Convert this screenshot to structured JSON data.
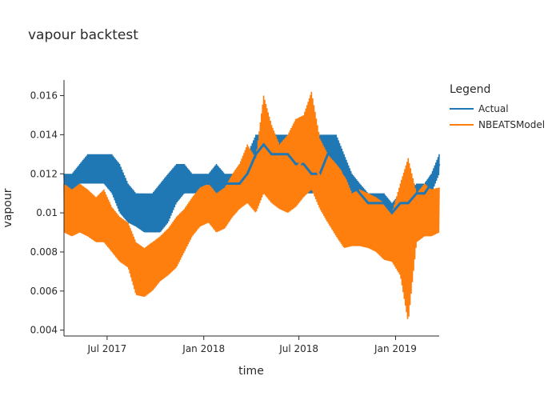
{
  "chart_data": {
    "type": "line",
    "title": "vapour backtest",
    "xlabel": "time",
    "ylabel": "vapour",
    "x_range": [
      "2017-04-10",
      "2019-03-25"
    ],
    "ylim": [
      0.0037,
      0.0168
    ],
    "x_ticks": [
      {
        "date": "2017-07-01",
        "label": "Jul 2017"
      },
      {
        "date": "2018-01-01",
        "label": "Jan 2018"
      },
      {
        "date": "2018-07-01",
        "label": "Jul 2018"
      },
      {
        "date": "2019-01-01",
        "label": "Jan 2019"
      }
    ],
    "y_ticks": [
      {
        "value": 0.004,
        "label": "0.004"
      },
      {
        "value": 0.006,
        "label": "0.006"
      },
      {
        "value": 0.008,
        "label": "0.008"
      },
      {
        "value": 0.01,
        "label": "0.01"
      },
      {
        "value": 0.012,
        "label": "0.012"
      },
      {
        "value": 0.014,
        "label": "0.014"
      },
      {
        "value": 0.016,
        "label": "0.016"
      }
    ],
    "legend_title": "Legend",
    "legend_position": "right",
    "series": [
      {
        "name": "Actual",
        "color": "#1f77b4",
        "x": [
          "2017-04-10",
          "2017-04-25",
          "2017-05-10",
          "2017-05-25",
          "2017-06-10",
          "2017-06-25",
          "2017-07-10",
          "2017-07-25",
          "2017-08-10",
          "2017-08-25",
          "2017-09-10",
          "2017-09-25",
          "2017-10-10",
          "2017-10-25",
          "2017-11-10",
          "2017-11-25",
          "2017-12-10",
          "2017-12-25",
          "2018-01-10",
          "2018-01-25",
          "2018-02-10",
          "2018-02-25",
          "2018-03-10",
          "2018-03-25",
          "2018-04-10",
          "2018-04-25",
          "2018-05-10",
          "2018-05-25",
          "2018-06-10",
          "2018-06-25",
          "2018-07-10",
          "2018-07-25",
          "2018-08-10",
          "2018-08-25",
          "2018-09-10",
          "2018-09-25",
          "2018-10-10",
          "2018-10-25",
          "2018-11-10",
          "2018-11-25",
          "2018-12-10",
          "2018-12-25",
          "2019-01-10",
          "2019-01-25",
          "2019-02-10",
          "2019-02-25",
          "2019-03-10",
          "2019-03-25"
        ],
        "y": [
          0.0115,
          0.0115,
          0.012,
          0.0125,
          0.0125,
          0.012,
          0.0115,
          0.0115,
          0.0105,
          0.01,
          0.01,
          0.01,
          0.0105,
          0.011,
          0.0115,
          0.0115,
          0.0115,
          0.0115,
          0.0115,
          0.0115,
          0.0115,
          0.0115,
          0.0115,
          0.012,
          0.013,
          0.0135,
          0.013,
          0.013,
          0.013,
          0.0125,
          0.0125,
          0.012,
          0.012,
          0.013,
          0.013,
          0.012,
          0.0115,
          0.011,
          0.0105,
          0.0105,
          0.0105,
          0.01,
          0.0105,
          0.0105,
          0.011,
          0.011,
          0.0115,
          0.0125
        ],
        "low": [
          0.011,
          0.011,
          0.0115,
          0.0115,
          0.0115,
          0.0115,
          0.011,
          0.01,
          0.0095,
          0.0093,
          0.009,
          0.009,
          0.009,
          0.0095,
          0.0105,
          0.011,
          0.011,
          0.011,
          0.011,
          0.011,
          0.011,
          0.011,
          0.0105,
          0.0105,
          0.0115,
          0.012,
          0.0115,
          0.012,
          0.012,
          0.011,
          0.011,
          0.011,
          0.011,
          0.0115,
          0.0115,
          0.011,
          0.0105,
          0.0103,
          0.01,
          0.0097,
          0.0095,
          0.0095,
          0.0095,
          0.0097,
          0.01,
          0.01,
          0.011,
          0.012
        ],
        "high": [
          0.012,
          0.012,
          0.0125,
          0.013,
          0.013,
          0.013,
          0.013,
          0.0125,
          0.0115,
          0.011,
          0.011,
          0.011,
          0.0115,
          0.012,
          0.0125,
          0.0125,
          0.012,
          0.012,
          0.012,
          0.0125,
          0.012,
          0.012,
          0.0125,
          0.013,
          0.014,
          0.014,
          0.014,
          0.014,
          0.014,
          0.0135,
          0.013,
          0.0135,
          0.014,
          0.014,
          0.014,
          0.013,
          0.012,
          0.0115,
          0.011,
          0.011,
          0.011,
          0.0105,
          0.011,
          0.011,
          0.0115,
          0.0115,
          0.012,
          0.013
        ]
      },
      {
        "name": "NBEATSModel",
        "color": "#ff7f0e",
        "x": [
          "2017-04-10",
          "2017-04-25",
          "2017-05-10",
          "2017-05-25",
          "2017-06-10",
          "2017-06-25",
          "2017-07-10",
          "2017-07-25",
          "2017-08-10",
          "2017-08-25",
          "2017-09-10",
          "2017-09-25",
          "2017-10-10",
          "2017-10-25",
          "2017-11-10",
          "2017-11-25",
          "2017-12-10",
          "2017-12-25",
          "2018-01-10",
          "2018-01-25",
          "2018-02-10",
          "2018-02-25",
          "2018-03-10",
          "2018-03-25",
          "2018-04-10",
          "2018-04-25",
          "2018-05-10",
          "2018-05-25",
          "2018-06-10",
          "2018-06-25",
          "2018-07-10",
          "2018-07-25",
          "2018-08-10",
          "2018-08-25",
          "2018-09-10",
          "2018-09-25",
          "2018-10-10",
          "2018-10-25",
          "2018-11-10",
          "2018-11-25",
          "2018-12-10",
          "2018-12-25",
          "2019-01-10",
          "2019-01-25",
          "2019-02-10",
          "2019-02-25",
          "2019-03-10",
          "2019-03-25"
        ],
        "y": [
          0.01,
          0.0098,
          0.0102,
          0.0098,
          0.0095,
          0.0097,
          0.009,
          0.0085,
          0.0082,
          0.007,
          0.0068,
          0.007,
          0.0074,
          0.0078,
          0.0083,
          0.009,
          0.0096,
          0.0102,
          0.0104,
          0.0098,
          0.0102,
          0.0108,
          0.0112,
          0.0118,
          0.0114,
          0.0125,
          0.012,
          0.0118,
          0.0114,
          0.0122,
          0.0128,
          0.013,
          0.0118,
          0.0112,
          0.011,
          0.01,
          0.0095,
          0.0096,
          0.0094,
          0.0092,
          0.0088,
          0.0086,
          0.0085,
          0.0096,
          0.0094,
          0.01,
          0.0098,
          0.01
        ],
        "low": [
          0.009,
          0.0088,
          0.009,
          0.0088,
          0.0085,
          0.0085,
          0.008,
          0.0075,
          0.0072,
          0.0058,
          0.0057,
          0.006,
          0.0065,
          0.0068,
          0.0072,
          0.008,
          0.0088,
          0.0093,
          0.0095,
          0.009,
          0.0092,
          0.0098,
          0.0102,
          0.0105,
          0.01,
          0.011,
          0.0105,
          0.0102,
          0.01,
          0.0103,
          0.0108,
          0.0112,
          0.0102,
          0.0095,
          0.0088,
          0.0082,
          0.0083,
          0.0083,
          0.0082,
          0.008,
          0.0076,
          0.0075,
          0.0068,
          0.0044,
          0.0085,
          0.0088,
          0.0088,
          0.009
        ],
        "high": [
          0.0115,
          0.0112,
          0.0115,
          0.0112,
          0.0108,
          0.0112,
          0.0103,
          0.0098,
          0.0095,
          0.0085,
          0.0082,
          0.0085,
          0.0088,
          0.0092,
          0.0098,
          0.0102,
          0.0108,
          0.0113,
          0.0115,
          0.011,
          0.0113,
          0.012,
          0.0125,
          0.0135,
          0.0128,
          0.016,
          0.0145,
          0.0135,
          0.014,
          0.0148,
          0.015,
          0.0162,
          0.0138,
          0.013,
          0.0125,
          0.012,
          0.011,
          0.0112,
          0.011,
          0.0108,
          0.0105,
          0.01,
          0.0115,
          0.0128,
          0.011,
          0.0115,
          0.0112,
          0.0113
        ]
      }
    ]
  }
}
